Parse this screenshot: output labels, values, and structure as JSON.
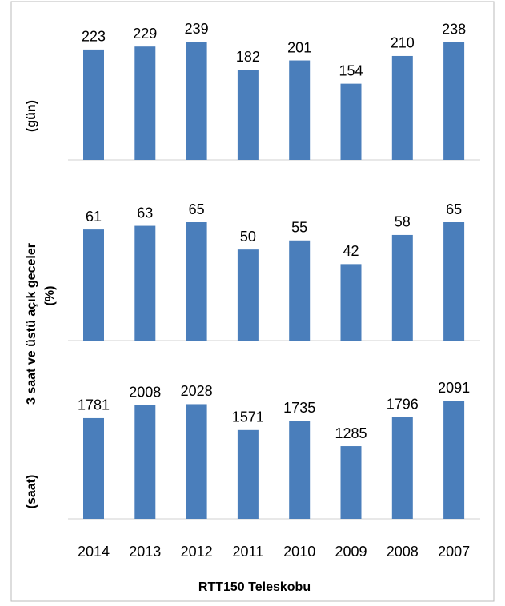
{
  "chart_data": {
    "type": "bar",
    "ylabel": "3 saat ve üstü açık geceler",
    "xlabel": "RTT150 Teleskobu",
    "categories": [
      "2014",
      "2013",
      "2012",
      "2011",
      "2010",
      "2009",
      "2008",
      "2007"
    ],
    "series": [
      {
        "name": "(gün)",
        "color": "#4a7ebb",
        "values": [
          223,
          229,
          239,
          182,
          201,
          154,
          210,
          238
        ]
      },
      {
        "name": "(%)",
        "color": "#4a7ebb",
        "values": [
          61,
          63,
          65,
          50,
          55,
          42,
          58,
          65
        ]
      },
      {
        "name": "(saat)",
        "color": "#4a7ebb",
        "values": [
          1781,
          2008,
          2028,
          1571,
          1735,
          1285,
          1796,
          2091
        ]
      }
    ]
  }
}
